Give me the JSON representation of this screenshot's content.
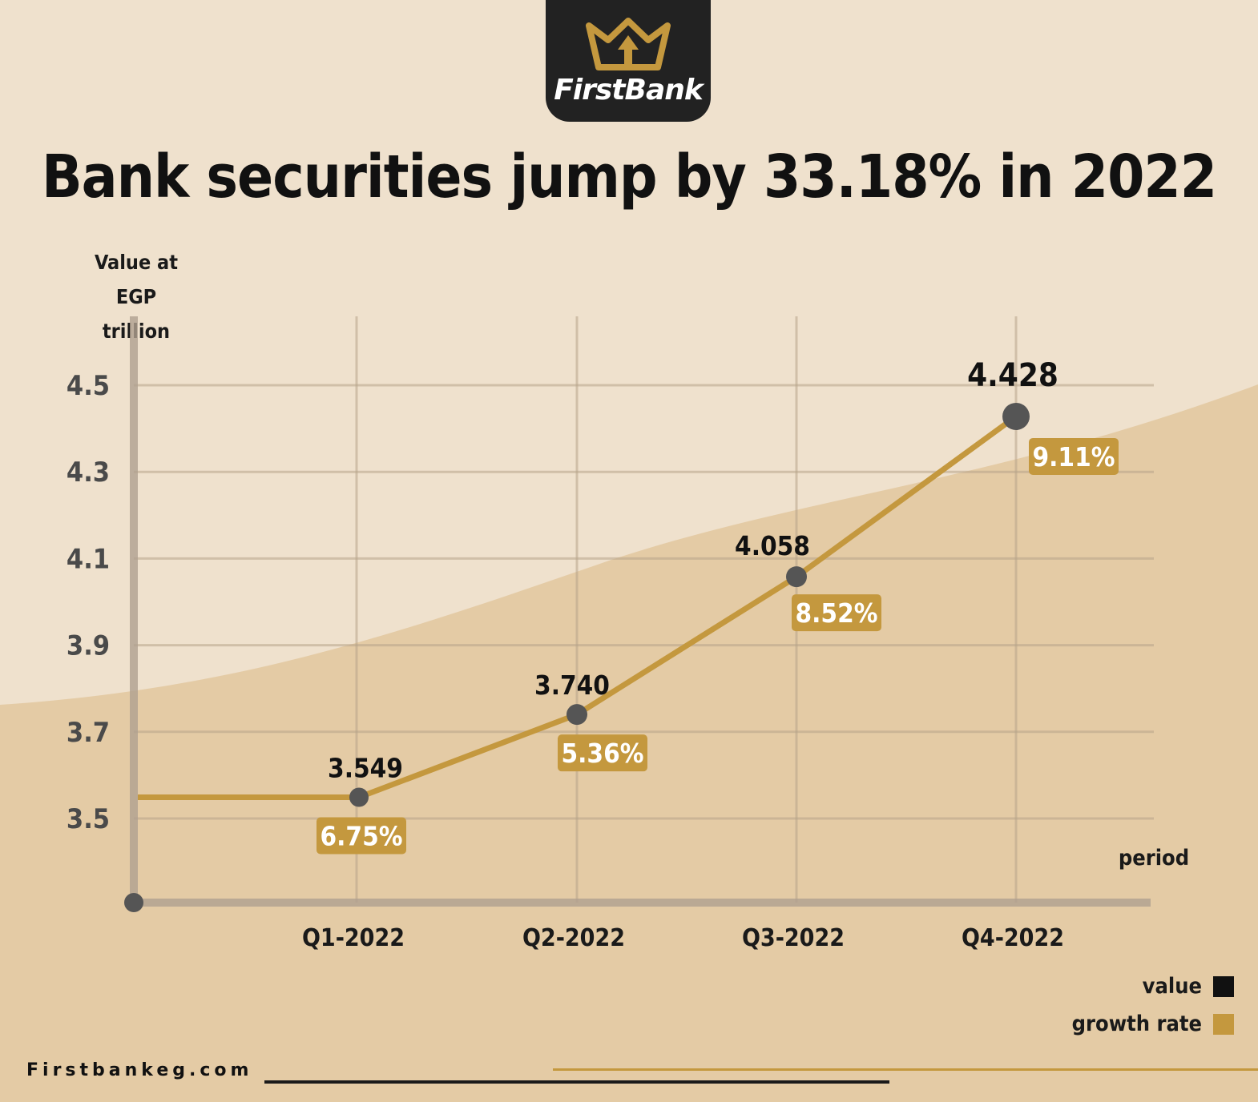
{
  "brand": {
    "name": "FirstBank",
    "logo": "crown-logo-icon"
  },
  "website": "Firstbankeg.com",
  "colors": {
    "value": "#111111",
    "growth": "#c4983e",
    "line": "#c4983e",
    "point": "#555555"
  },
  "chart_data": {
    "type": "line",
    "title": "Bank securities jump by 33.18% in 2022",
    "ylabel_lines": [
      "Value at",
      "EGP trillion"
    ],
    "xlabel": "period",
    "categories": [
      "Q1-2022",
      "Q2-2022",
      "Q3-2022",
      "Q4-2022"
    ],
    "yticks": [
      "4.5",
      "4.3",
      "4.1",
      "3.9",
      "3.7",
      "3.5"
    ],
    "ylim": [
      3.3,
      4.6
    ],
    "grid": true,
    "series": [
      {
        "name": "value",
        "values": [
          3.549,
          3.74,
          4.058,
          4.428
        ],
        "labels": [
          "3.549",
          "3.740",
          "4.058",
          "4.428"
        ]
      },
      {
        "name": "growth rate",
        "labels": [
          "6.75%",
          "5.36%",
          "8.52%",
          "9.11%"
        ]
      }
    ],
    "legend_position": "bottom-right"
  }
}
